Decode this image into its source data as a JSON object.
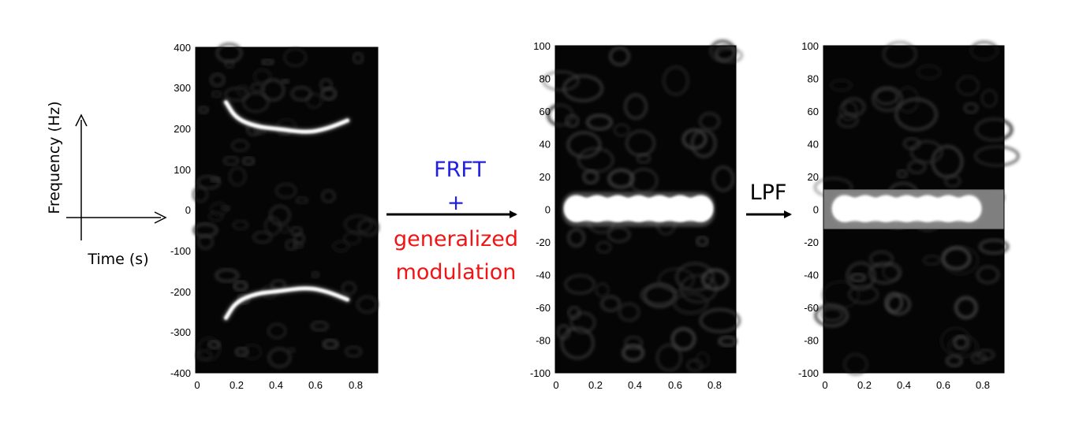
{
  "legend_axes": {
    "ylabel": "Frequency (Hz)",
    "xlabel": "Time (s)"
  },
  "operations": {
    "first": {
      "line1": "FRFT",
      "line2": "+",
      "line3": "generalized",
      "line4": "modulation",
      "color_top": "#1f1fe6",
      "color_bottom": "#f01414"
    },
    "second": {
      "label": "LPF"
    }
  },
  "chart_data": [
    {
      "type": "heatmap",
      "xticks": [
        "0",
        "0.2",
        "0.4",
        "0.6",
        "0.8"
      ],
      "yticks": [
        "400",
        "300",
        "200",
        "100",
        "0",
        "-100",
        "-200",
        "-300",
        "-400"
      ],
      "xlim": [
        0,
        0.9
      ],
      "ylim": [
        -400,
        400
      ],
      "ridges": [
        {
          "points": [
            [
              0.15,
              265
            ],
            [
              0.2,
              225
            ],
            [
              0.3,
              205
            ],
            [
              0.4,
              200
            ],
            [
              0.55,
              190
            ],
            [
              0.65,
              200
            ],
            [
              0.75,
              220
            ]
          ]
        },
        {
          "points": [
            [
              0.15,
              -265
            ],
            [
              0.2,
              -225
            ],
            [
              0.3,
              -205
            ],
            [
              0.4,
              -200
            ],
            [
              0.55,
              -190
            ],
            [
              0.65,
              -200
            ],
            [
              0.75,
              -220
            ]
          ]
        }
      ]
    },
    {
      "type": "heatmap",
      "xticks": [
        "0",
        "0.2",
        "0.4",
        "0.6",
        "0.8"
      ],
      "yticks": [
        "100",
        "80",
        "60",
        "40",
        "20",
        "0",
        "-20",
        "-40",
        "-60",
        "-80",
        "-100"
      ],
      "xlim": [
        0,
        0.9
      ],
      "ylim": [
        -100,
        100
      ],
      "band": {
        "x": [
          0.05,
          0.78
        ],
        "y": 0
      }
    },
    {
      "type": "heatmap",
      "xticks": [
        "0",
        "0.2",
        "0.4",
        "0.6",
        "0.8"
      ],
      "yticks": [
        "100",
        "80",
        "60",
        "40",
        "20",
        "0",
        "-20",
        "-40",
        "-60",
        "-80",
        "-100"
      ],
      "xlim": [
        0,
        0.9
      ],
      "ylim": [
        -100,
        100
      ],
      "band": {
        "x": [
          0.05,
          0.78
        ],
        "y": 0
      },
      "filter_pass_band": [
        -12,
        12
      ]
    }
  ]
}
